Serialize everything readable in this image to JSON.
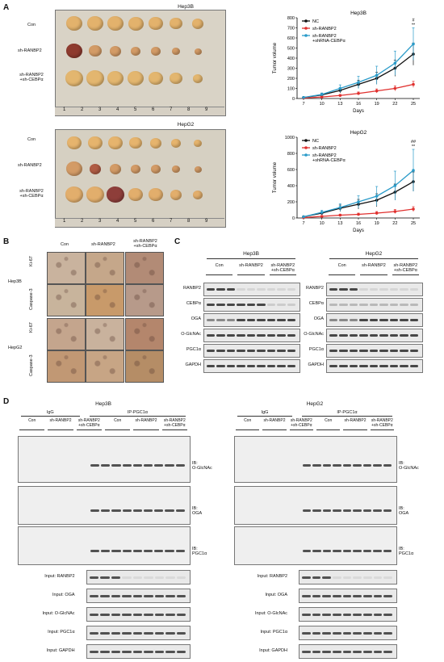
{
  "panel_labels": {
    "a": "A",
    "b": "B",
    "c": "C",
    "d": "D"
  },
  "panelA": {
    "hep3b_photo": {
      "title": "Hep3B",
      "rows": [
        "Con",
        "sh-RANBP2",
        "sh-RANBP2\n+sh-CEBPα"
      ]
    },
    "hepg2_photo": {
      "title": "HepG2",
      "rows": [
        "Con",
        "sh-RANBP2",
        "sh-RANBP2\n+sh-CEBPα"
      ]
    },
    "ruler_numbers": [
      "1",
      "2",
      "3",
      "4",
      "5",
      "6",
      "7",
      "8",
      "9"
    ]
  },
  "chart_data": [
    {
      "type": "line",
      "title": "Hep3B",
      "xlabel": "Days",
      "ylabel": "Tumor volume",
      "x": [
        7,
        10,
        13,
        16,
        19,
        22,
        25
      ],
      "ylim": [
        0,
        800
      ],
      "yticks": [
        0,
        100,
        200,
        300,
        400,
        500,
        600,
        700,
        800
      ],
      "series": [
        {
          "name": "NC",
          "color": "#111111",
          "values": [
            10,
            35,
            80,
            140,
            200,
            300,
            440
          ],
          "err": [
            5,
            15,
            25,
            40,
            60,
            80,
            110
          ]
        },
        {
          "name": "sh-RANBP2",
          "color": "#e0302e",
          "values": [
            5,
            15,
            30,
            50,
            75,
            100,
            140
          ],
          "err": [
            3,
            6,
            10,
            15,
            20,
            25,
            30
          ]
        },
        {
          "name": "sh-RANBP2\n+shRNA-CEBPα",
          "color": "#2a9bc9",
          "values": [
            10,
            40,
            100,
            160,
            230,
            350,
            540
          ],
          "err": [
            5,
            15,
            35,
            60,
            90,
            120,
            160
          ]
        }
      ],
      "annotations": [
        "#",
        "**"
      ]
    },
    {
      "type": "line",
      "title": "HepG2",
      "xlabel": "Days",
      "ylabel": "Tumor volume",
      "x": [
        7,
        10,
        13,
        16,
        19,
        22,
        25
      ],
      "ylim": [
        0,
        1000
      ],
      "yticks": [
        0,
        200,
        400,
        600,
        800,
        1000
      ],
      "series": [
        {
          "name": "NC",
          "color": "#111111",
          "values": [
            15,
            60,
            120,
            170,
            220,
            320,
            450
          ],
          "err": [
            5,
            20,
            40,
            60,
            80,
            100,
            120
          ]
        },
        {
          "name": "sh-RANBP2",
          "color": "#e0302e",
          "values": [
            5,
            20,
            35,
            45,
            60,
            80,
            110
          ],
          "err": [
            3,
            8,
            12,
            15,
            20,
            25,
            30
          ]
        },
        {
          "name": "sh-RANBP2\n+shRNA-CEBPα",
          "color": "#2a9bc9",
          "values": [
            15,
            70,
            130,
            200,
            270,
            400,
            590
          ],
          "err": [
            5,
            25,
            45,
            75,
            120,
            180,
            260
          ]
        }
      ],
      "annotations": [
        "##",
        "**"
      ]
    }
  ],
  "panelB": {
    "cols": [
      "Con",
      "sh-RANBP2",
      "sh-RANBP2\n+sh-CEBPα"
    ],
    "cells": [
      "Hep3B",
      "HepG2"
    ],
    "stains": [
      "Ki-67",
      "Caspase-3"
    ]
  },
  "panelC": {
    "left": {
      "title": "Hep3B",
      "groups": [
        "Con",
        "sh-RANBP2",
        "sh-RANBP2\n+sh-CEBPα"
      ],
      "rows": [
        "RANBP2",
        "CEBPα",
        "OGA",
        "O-GlcNAc",
        "PGC1α",
        "GAPDH"
      ]
    },
    "right": {
      "title": "HepG2",
      "groups": [
        "Con",
        "sh-RANBP2",
        "sh-RANBP2\n+sh-CEBPα"
      ],
      "rows": [
        "RANBP2",
        "CEBPα",
        "OGA",
        "O-GlcNAc",
        "PGC1α",
        "GAPDH"
      ]
    }
  },
  "panelD": {
    "left": {
      "title": "Hep3B",
      "ip_groups": [
        "IgG",
        "IP-PGC1α"
      ],
      "groups": [
        "Con",
        "sh-RANBP2",
        "sh-RANBP2\n+sh-CEBPα",
        "Con",
        "sh-RANBP2",
        "sh-RANBP2\n+sh-CEBPα"
      ],
      "ib": [
        "IB:\nO-GlcNAc",
        "IB:\nOGA",
        "IB:\nPGC1α"
      ],
      "inputs": [
        "Input: RANBP2",
        "Input: OGA",
        "Input: O-GlcNAc",
        "Input: PGC1α",
        "Input: GAPDH"
      ]
    },
    "right": {
      "title": "HepG2",
      "ip_groups": [
        "IgG",
        "IP-PGC1α"
      ],
      "groups": [
        "Con",
        "sh-RANBP2",
        "sh-RANBP2\n+sh-CEBPα",
        "Con",
        "sh-RANBP2",
        "sh-RANBP2\n+sh-CEBPα"
      ],
      "ib": [
        "IB:\nO-GlcNAc",
        "IB:\nOGA",
        "IB:\nPGC1α"
      ],
      "inputs": [
        "Input: RANBP2",
        "Input: OGA",
        "Input: O-GlcNAc",
        "Input: PGC1α",
        "Input: GAPDH"
      ]
    }
  }
}
